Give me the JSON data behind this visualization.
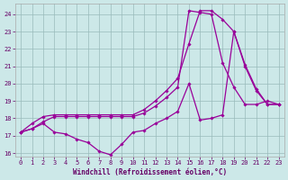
{
  "xlabel": "Windchill (Refroidissement éolien,°C)",
  "bg_color": "#cce8e8",
  "line_color": "#990099",
  "grid_color": "#99bbbb",
  "xlim": [
    -0.5,
    23.5
  ],
  "ylim": [
    15.8,
    24.6
  ],
  "yticks": [
    16,
    17,
    18,
    19,
    20,
    21,
    22,
    23,
    24
  ],
  "xticks": [
    0,
    1,
    2,
    3,
    4,
    5,
    6,
    7,
    8,
    9,
    10,
    11,
    12,
    13,
    14,
    15,
    16,
    17,
    18,
    19,
    20,
    21,
    22,
    23
  ],
  "line1_x": [
    0,
    1,
    2,
    3,
    4,
    5,
    6,
    7,
    8,
    9,
    10,
    11,
    12,
    13,
    14,
    15,
    16,
    17,
    18,
    19,
    20,
    21,
    22,
    23
  ],
  "line1_y": [
    17.2,
    17.4,
    17.7,
    17.2,
    17.1,
    16.8,
    16.6,
    16.1,
    15.9,
    16.5,
    17.2,
    17.3,
    17.7,
    18.0,
    18.4,
    20.0,
    17.9,
    18.0,
    18.2,
    23.0,
    21.0,
    19.6,
    18.8,
    18.8
  ],
  "line2_x": [
    0,
    1,
    2,
    3,
    4,
    5,
    6,
    7,
    8,
    9,
    10,
    11,
    12,
    13,
    14,
    15,
    16,
    17,
    18,
    19,
    20,
    21,
    22,
    23
  ],
  "line2_y": [
    17.2,
    17.7,
    18.1,
    18.2,
    18.2,
    18.2,
    18.2,
    18.2,
    18.2,
    18.2,
    18.2,
    18.5,
    19.0,
    19.6,
    20.3,
    22.3,
    24.2,
    24.2,
    23.7,
    23.0,
    21.1,
    19.7,
    18.8,
    18.8
  ],
  "line3_x": [
    0,
    1,
    2,
    3,
    4,
    5,
    6,
    7,
    8,
    9,
    10,
    11,
    12,
    13,
    14,
    15,
    16,
    17,
    18,
    19,
    20,
    21,
    22,
    23
  ],
  "line3_y": [
    17.2,
    17.4,
    17.8,
    18.1,
    18.1,
    18.1,
    18.1,
    18.1,
    18.1,
    18.1,
    18.1,
    18.3,
    18.7,
    19.2,
    19.8,
    24.2,
    24.1,
    24.0,
    21.2,
    19.8,
    18.8,
    18.8,
    19.0,
    18.8
  ]
}
